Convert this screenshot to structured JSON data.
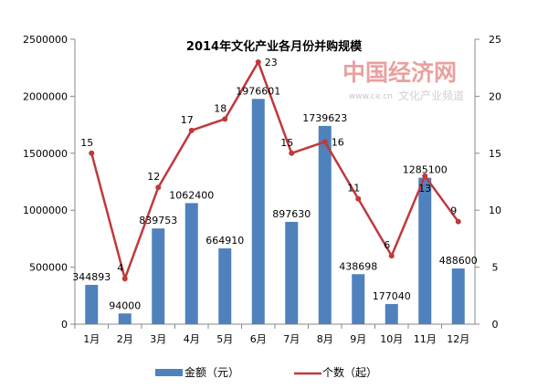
{
  "chart_data": {
    "type": "bar+line",
    "title": "2014年文化产业各月份并购规模",
    "categories": [
      "1月",
      "2月",
      "3月",
      "4月",
      "5月",
      "6月",
      "7月",
      "8月",
      "9月",
      "10月",
      "11月",
      "12月"
    ],
    "series": [
      {
        "name": "金额（元）",
        "type": "bar",
        "axis": "left",
        "color": "#4F81BD",
        "values": [
          344893,
          94000,
          839753,
          1062400,
          664910,
          1976601,
          897630,
          1739623,
          438698,
          177040,
          1285100,
          488600
        ]
      },
      {
        "name": "个数（起）",
        "type": "line",
        "axis": "right",
        "color": "#C0393B",
        "values": [
          15,
          4,
          12,
          17,
          18,
          23,
          15,
          16,
          11,
          6,
          13,
          9
        ]
      }
    ],
    "left_ylim": [
      0,
      2500000
    ],
    "left_ticks": [
      "0",
      "500000",
      "1000000",
      "1500000",
      "2000000",
      "2500000"
    ],
    "right_ylim": [
      0,
      25
    ],
    "right_ticks": [
      "0",
      "5",
      "10",
      "15",
      "20",
      "25"
    ],
    "legend": "bottom",
    "grid": false
  },
  "watermark": {
    "logo": "中国经济网",
    "url": "www.ce.cn",
    "channel": "文化产业频道"
  }
}
